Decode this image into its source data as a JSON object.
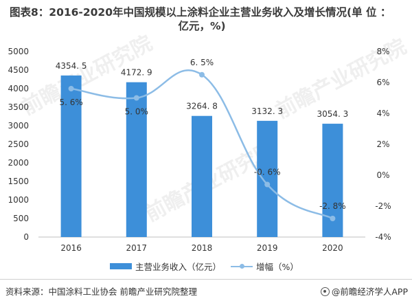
{
  "title_line1": "图表8：2016-2020年中国规模以上涂料企业主营业务收入及增长情况(单 位 ：",
  "title_line2": "亿元，%)",
  "source_text": "资料来源：中国涂料工业协会 前瞻产业研究院整理",
  "brand_text": "@前瞻经济学人APP",
  "watermark_text": "前瞻产业研究院",
  "colors": {
    "bar": "#3d8fd9",
    "line": "#8cbce6",
    "axis": "#bfbfbf"
  },
  "chart_data": {
    "type": "bar",
    "categories": [
      "2016",
      "2017",
      "2018",
      "2019",
      "2020"
    ],
    "series": [
      {
        "name": "主营业务收入（亿元）",
        "type": "bar",
        "axis": "left",
        "values": [
          4354.5,
          4172.9,
          3264.8,
          3132.3,
          3054.3
        ],
        "labels": [
          "4354. 5",
          "4172. 9",
          "3264. 8",
          "3132. 3",
          "3054. 3"
        ]
      },
      {
        "name": "增幅（%）",
        "type": "line",
        "axis": "right",
        "values": [
          5.6,
          5.0,
          6.5,
          -0.6,
          -2.8
        ],
        "labels": [
          "5. 6%",
          "5. 0%",
          "6. 5%",
          "-0. 6%",
          "-2. 8%"
        ]
      }
    ],
    "y_left": {
      "min": 0,
      "max": 5000,
      "ticks": [
        "0",
        "500",
        "1000",
        "1500",
        "2000",
        "2500",
        "3000",
        "3500",
        "4000",
        "4500",
        "5000"
      ]
    },
    "y_right": {
      "min": -4,
      "max": 8,
      "ticks": [
        "-4%",
        "-2%",
        "0%",
        "2%",
        "4%",
        "6%",
        "8%"
      ]
    },
    "legend": [
      "主营业务收入（亿元）",
      "增幅（%）"
    ],
    "legend_position": "bottom",
    "grid": false
  }
}
